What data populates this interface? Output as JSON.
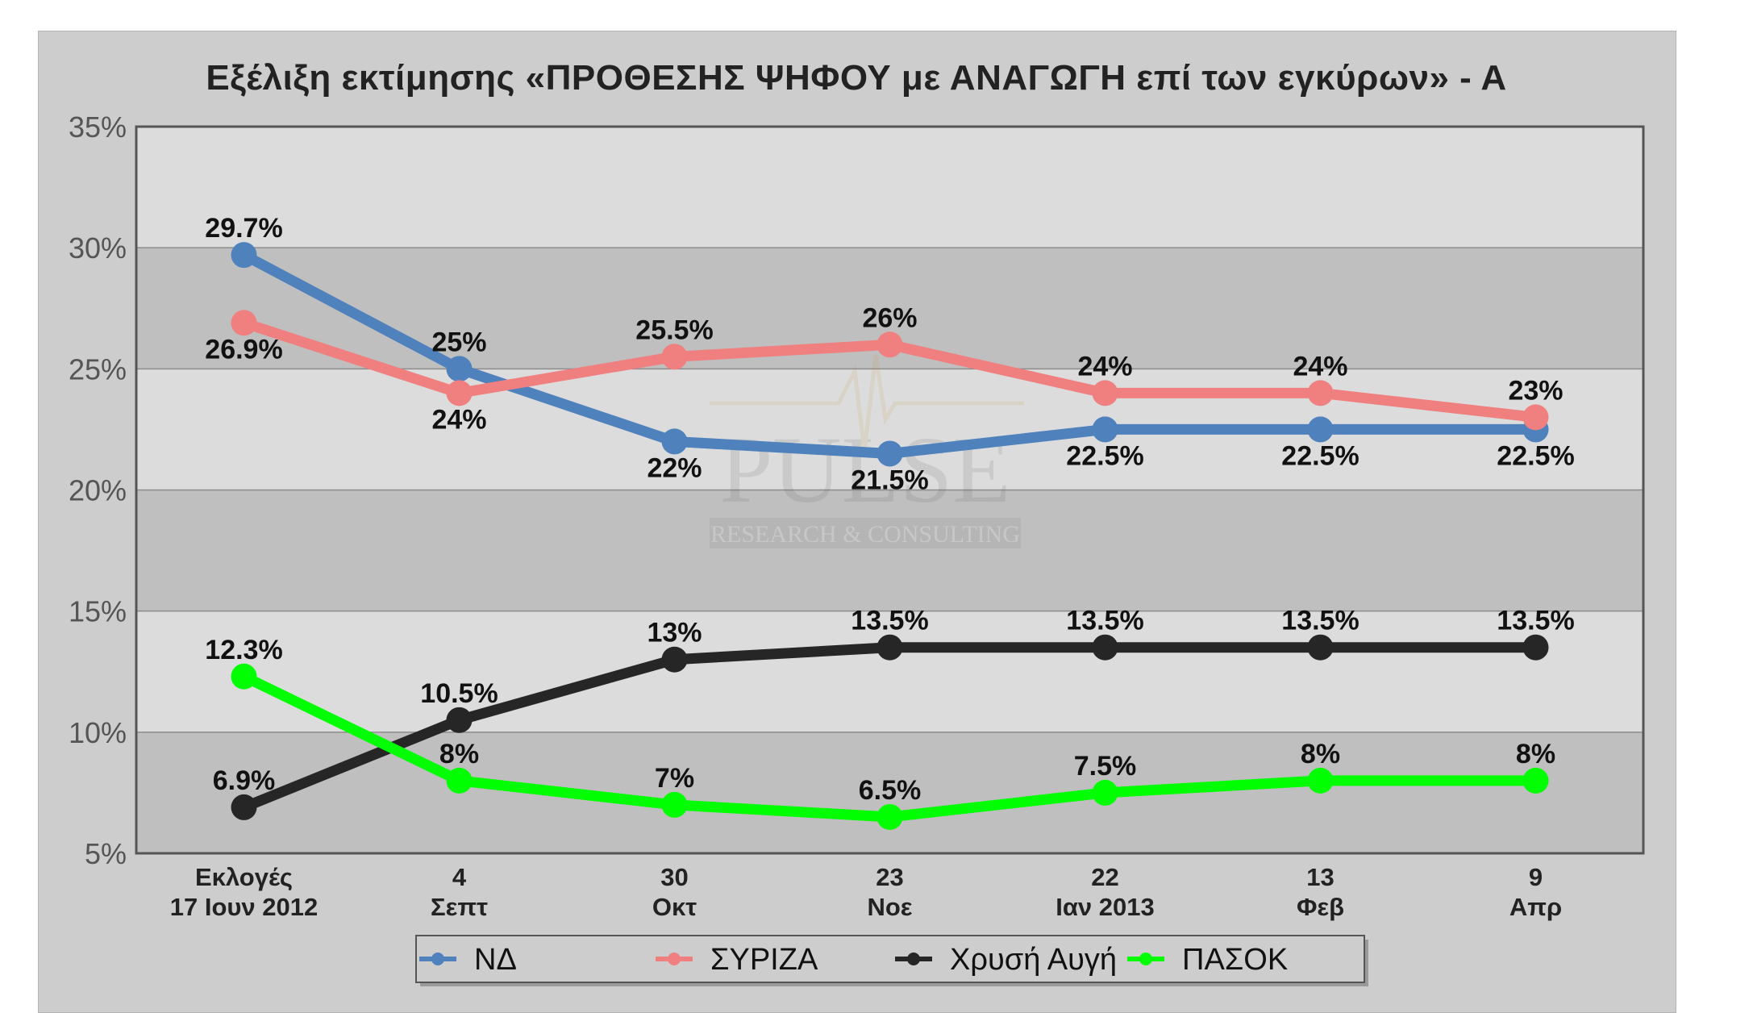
{
  "chart_data": {
    "type": "line",
    "title": "Εξέλιξη εκτίμησης «ΠΡΟΘΕΣΗΣ ΨΗΦΟΥ με ΑΝΑΓΩΓΗ επί των εγκύρων» - Α",
    "categories": [
      [
        "Εκλογές",
        "17 Ιουν 2012"
      ],
      [
        "4",
        "Σεπτ"
      ],
      [
        "30",
        "Οκτ"
      ],
      [
        "23",
        "Νοε"
      ],
      [
        "22",
        "Ιαν 2013"
      ],
      [
        "13",
        "Φεβ"
      ],
      [
        "9",
        "Απρ"
      ]
    ],
    "ylim": [
      5,
      35
    ],
    "yticks": [
      5,
      10,
      15,
      20,
      25,
      30,
      35
    ],
    "ytick_labels": [
      "5%",
      "10%",
      "15%",
      "20%",
      "25%",
      "30%",
      "35%"
    ],
    "grid": true,
    "legend_position": "bottom",
    "series": [
      {
        "name": "ΝΔ",
        "color": "#4f81bd",
        "values": [
          29.7,
          25,
          22,
          21.5,
          22.5,
          22.5,
          22.5
        ],
        "labels": [
          "29.7%",
          "25%",
          "22%",
          "21.5%",
          "22.5%",
          "22.5%",
          "22.5%"
        ]
      },
      {
        "name": "ΣΥΡΙΖΑ",
        "color": "#f08080",
        "values": [
          26.9,
          24,
          25.5,
          26,
          24,
          24,
          23
        ],
        "labels": [
          "26.9%",
          "24%",
          "25.5%",
          "26%",
          "24%",
          "24%",
          "23%"
        ]
      },
      {
        "name": "Χρυσή Αυγή",
        "color": "#262626",
        "values": [
          6.9,
          10.5,
          13,
          13.5,
          13.5,
          13.5,
          13.5
        ],
        "labels": [
          "6.9%",
          "10.5%",
          "13%",
          "13.5%",
          "13.5%",
          "13.5%",
          "13.5%"
        ]
      },
      {
        "name": "ΠΑΣΟΚ",
        "color": "#00ff00",
        "values": [
          12.3,
          8,
          7,
          6.5,
          7.5,
          8,
          8
        ],
        "labels": [
          "12.3%",
          "8%",
          "7%",
          "6.5%",
          "7.5%",
          "8%",
          "8%"
        ]
      }
    ]
  },
  "watermark": {
    "logo_text": "PULSE",
    "tagline": "RESEARCH & CONSULTING"
  }
}
